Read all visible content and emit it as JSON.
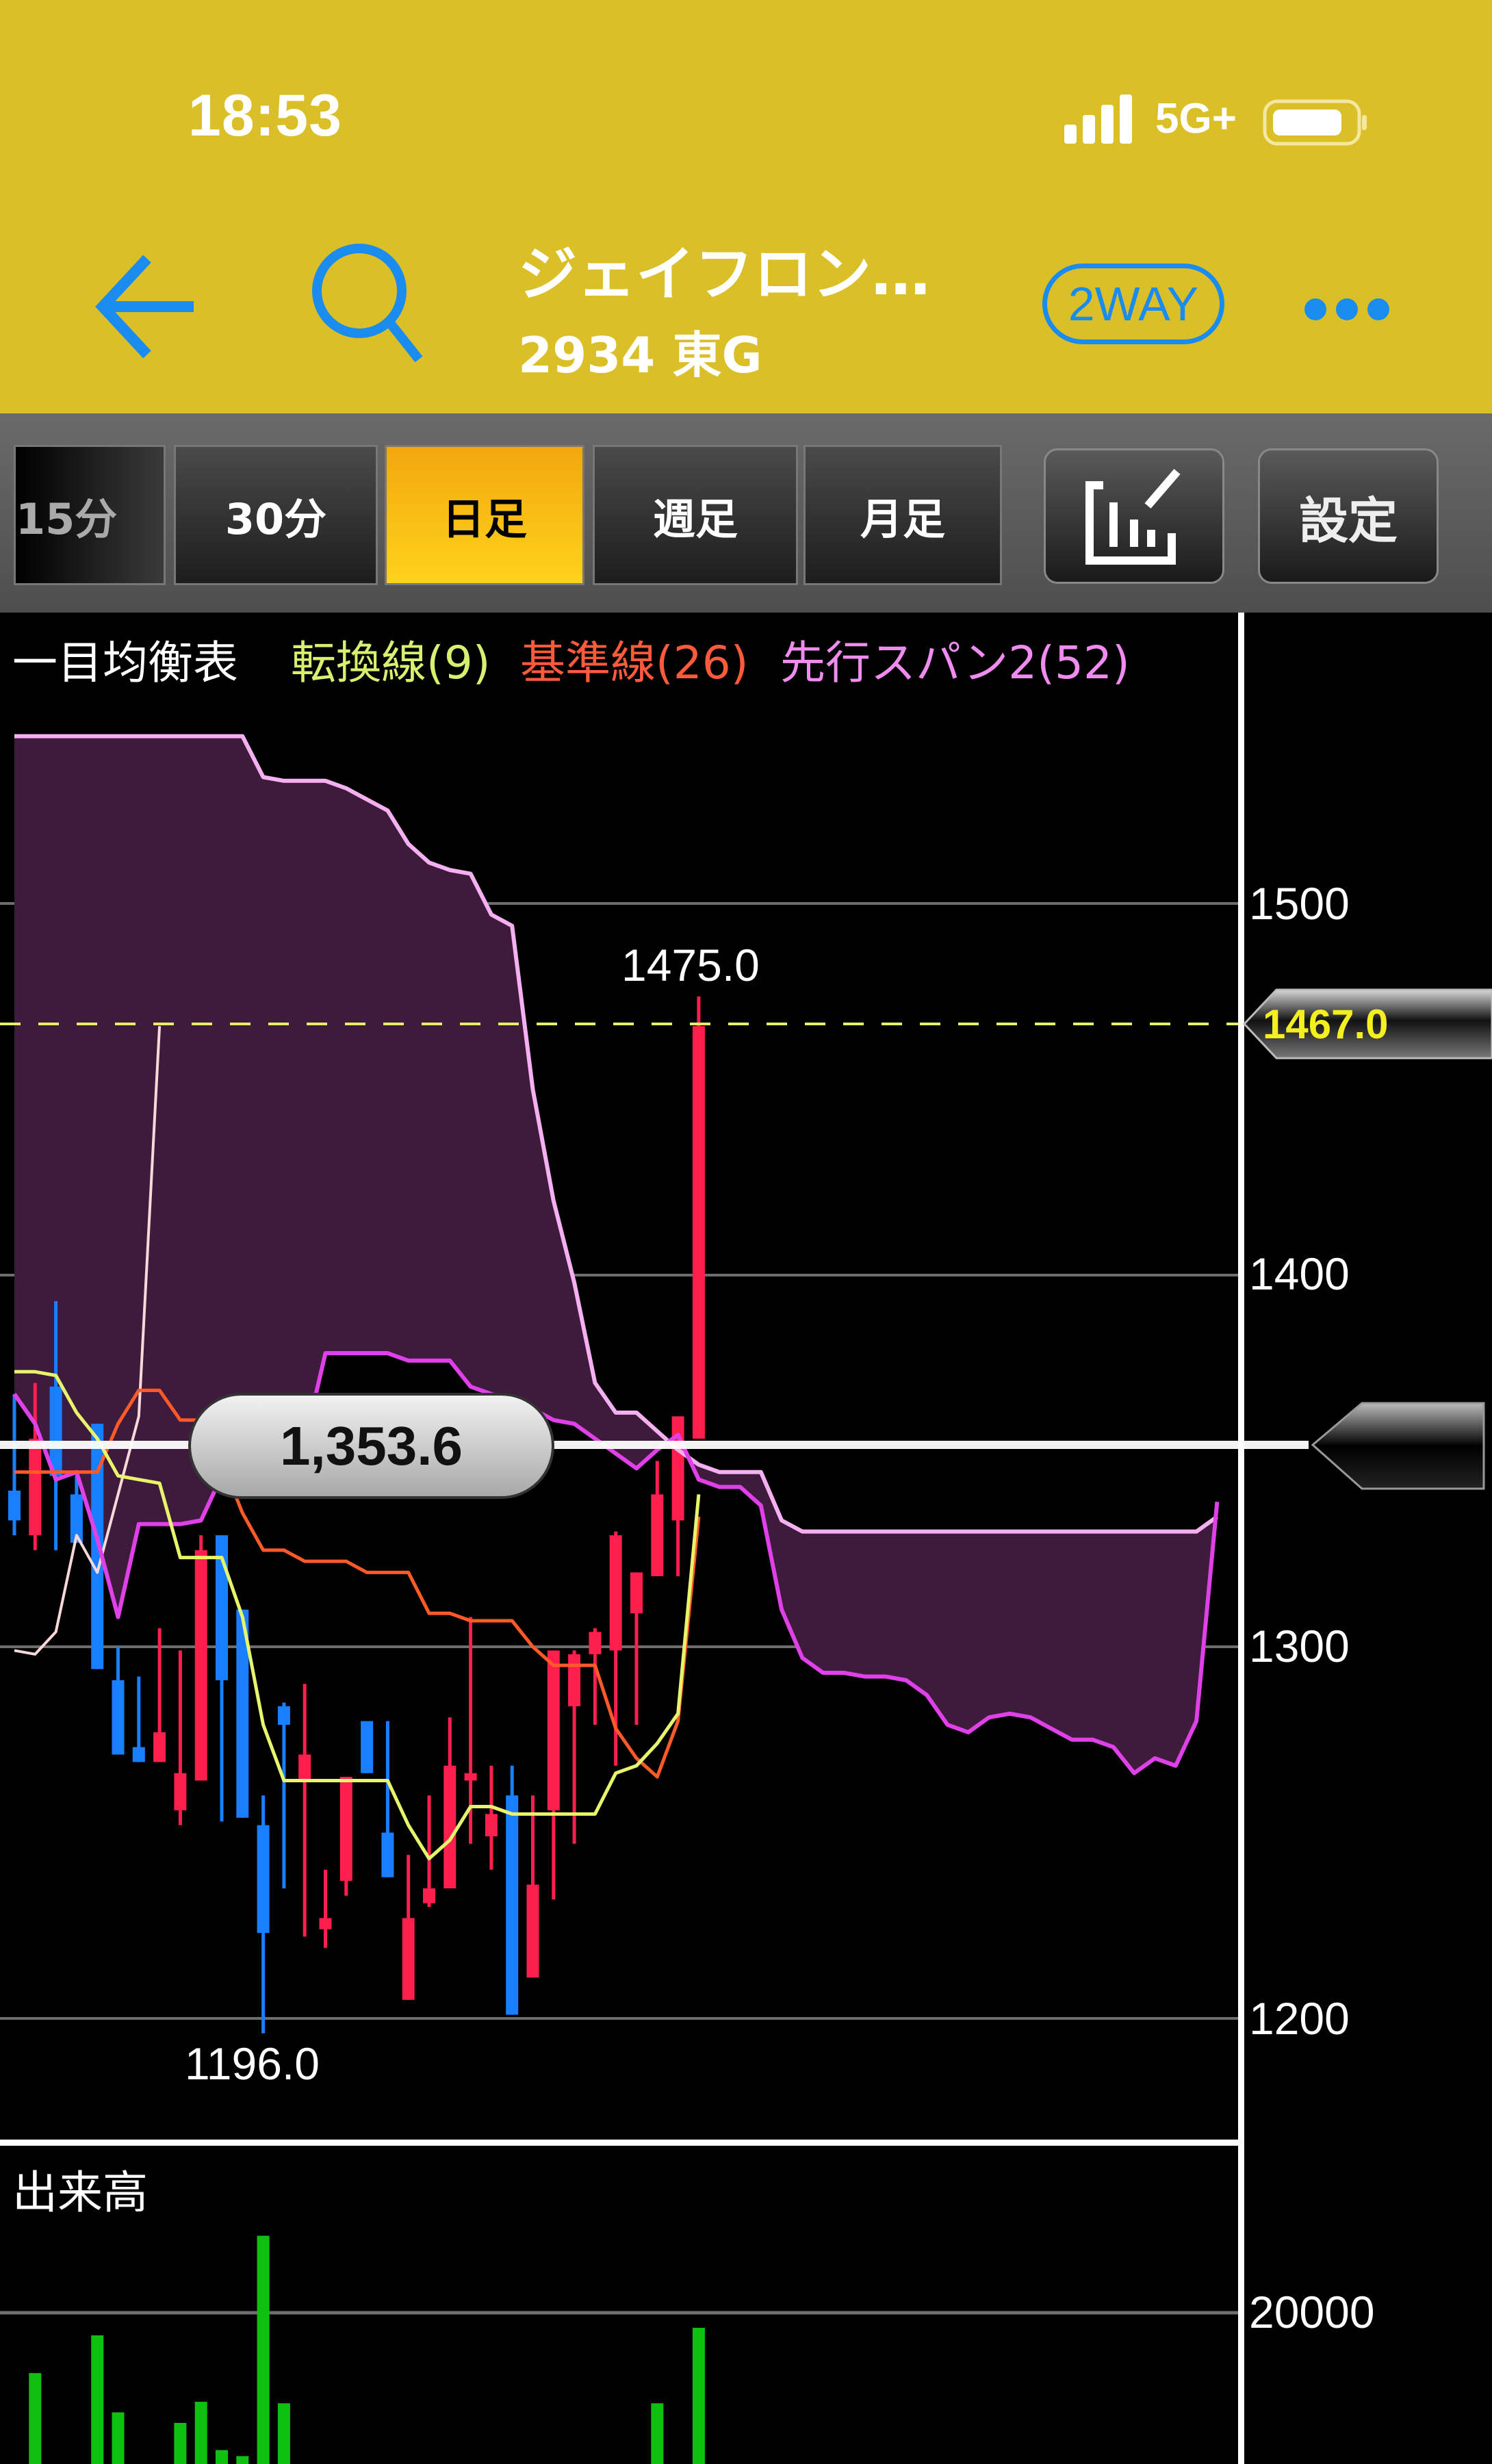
{
  "status_bar": {
    "time": "18:53",
    "network": "5G+",
    "signal_icon": "cellular-signal-icon",
    "battery_icon": "battery-icon"
  },
  "header": {
    "title": "ジェイフロン…",
    "subtitle": "2934 東G",
    "mode_button": "2WAY",
    "back_icon": "arrow-left-icon",
    "search_icon": "search-icon",
    "more_icon": "more-dots-icon",
    "accent_color": "#1a8cf0",
    "bar_color": "#dbbf28"
  },
  "toolbar": {
    "timeframes": [
      {
        "label": "15分",
        "active": false
      },
      {
        "label": "30分",
        "active": false
      },
      {
        "label": "日足",
        "active": true
      },
      {
        "label": "週足",
        "active": false
      },
      {
        "label": "月足",
        "active": false
      }
    ],
    "draw_icon": "chart-edit-icon",
    "settings_label": "設定"
  },
  "legend": {
    "indicator": "一目均衡表",
    "tenkan": "転換線(9)",
    "kijun": "基準線(26)",
    "span2": "先行スパン2(52)"
  },
  "price_axis": {
    "ticks": [
      "1500",
      "1400",
      "1300",
      "1200"
    ]
  },
  "annotations": {
    "high": "1475.0",
    "low": "1196.0",
    "last_price": "1467.0",
    "crosshair_price": "1,353.6"
  },
  "volume_panel": {
    "title": "出来高",
    "ticks": [
      "20000"
    ]
  },
  "chart_data": {
    "type": "candlestick",
    "price_ylim": [
      1200,
      1500
    ],
    "price_ticks": [
      1200,
      1300,
      1400,
      1500
    ],
    "last_price": 1467.0,
    "crosshair_price": 1353.6,
    "high": 1475.0,
    "low": 1196.0,
    "colors": {
      "up": "#ff1f4f",
      "down": "#1a7fff",
      "tenkan": "#e8f56a",
      "kijun": "#ff5a28",
      "span1": "#e040e8",
      "span2": "#f4b0f0",
      "cloud": "#3e1b3c",
      "chikou": "#f8d8d8",
      "volume": "#10c010"
    },
    "candles_ohlc": [
      [
        1342,
        1368,
        1330,
        1334
      ],
      [
        1330,
        1371,
        1326,
        1356
      ],
      [
        1370,
        1393,
        1326,
        1346
      ],
      [
        1341,
        1346,
        1328,
        1328
      ],
      [
        1360,
        1360,
        1294,
        1294
      ],
      [
        1291,
        1300,
        1271,
        1271
      ],
      [
        1273,
        1292,
        1269,
        1269
      ],
      [
        1269,
        1305,
        1269,
        1277
      ],
      [
        1256,
        1299,
        1252,
        1266
      ],
      [
        1264,
        1330,
        1264,
        1326
      ],
      [
        1330,
        1330,
        1253,
        1291
      ],
      [
        1310,
        1310,
        1254,
        1254
      ],
      [
        1252,
        1260,
        1196,
        1223
      ],
      [
        1284,
        1285,
        1235,
        1279
      ],
      [
        1264,
        1290,
        1222,
        1271
      ],
      [
        1224,
        1240,
        1219,
        1227
      ],
      [
        1237,
        1265,
        1233,
        1265
      ],
      [
        1280,
        1280,
        1266,
        1266
      ],
      [
        1250,
        1280,
        1238,
        1238
      ],
      [
        1205,
        1244,
        1205,
        1227
      ],
      [
        1231,
        1260,
        1230,
        1235
      ],
      [
        1235,
        1281,
        1235,
        1268
      ],
      [
        1264,
        1308,
        1247,
        1266
      ],
      [
        1249,
        1268,
        1240,
        1255
      ],
      [
        1260,
        1268,
        1201,
        1201
      ],
      [
        1211,
        1260,
        1211,
        1236
      ],
      [
        1256,
        1299,
        1232,
        1299
      ],
      [
        1284,
        1299,
        1247,
        1298
      ],
      [
        1298,
        1305,
        1279,
        1304
      ],
      [
        1299,
        1331,
        1268,
        1330
      ],
      [
        1309,
        1320,
        1279,
        1320
      ],
      [
        1319,
        1350,
        1319,
        1341
      ],
      [
        1334,
        1362,
        1319,
        1362
      ],
      [
        1356,
        1475,
        1356,
        1467
      ]
    ],
    "series": [
      {
        "name": "転換線(9)",
        "key": "tenkan",
        "values": [
          1374,
          1374,
          1373,
          1363,
          1356,
          1346,
          1345,
          1344,
          1324,
          1324,
          1324,
          1308,
          1279,
          1264,
          1264,
          1264,
          1264,
          1264,
          1264,
          1252,
          1243,
          1248,
          1257,
          1257,
          1255,
          1255,
          1255,
          1255,
          1255,
          1266,
          1268,
          1274,
          1282,
          1341
        ]
      },
      {
        "name": "基準線(26)",
        "key": "kijun",
        "values": [
          1347,
          1347,
          1347,
          1347,
          1347,
          1360,
          1369,
          1369,
          1361,
          1361,
          1350,
          1336,
          1326,
          1326,
          1323,
          1323,
          1323,
          1320,
          1320,
          1320,
          1309,
          1309,
          1307,
          1307,
          1307,
          1300,
          1295,
          1295,
          1295,
          1278,
          1270,
          1265,
          1280,
          1335
        ]
      },
      {
        "key": "span1",
        "values": [
          1368,
          1360,
          1345,
          1347,
          1329,
          1308,
          1333,
          1333,
          1333,
          1334,
          1346,
          1347,
          1347,
          1347,
          1355,
          1379,
          1379,
          1379,
          1379,
          1377,
          1377,
          1377,
          1370,
          1368,
          1366,
          1364,
          1361,
          1360,
          1356,
          1352,
          1348,
          1353,
          1357,
          1345,
          1343,
          1343,
          1338,
          1310,
          1297,
          1293,
          1293,
          1292,
          1292,
          1291,
          1287,
          1279,
          1277,
          1281,
          1282,
          1281,
          1278,
          1275,
          1275,
          1273,
          1266,
          1270,
          1268,
          1280,
          1339
        ]
      },
      {
        "name": "先行スパン2(52)",
        "key": "span2",
        "values": [
          1545,
          1545,
          1545,
          1545,
          1545,
          1545,
          1545,
          1545,
          1545,
          1545,
          1545,
          1545,
          1534,
          1533,
          1533,
          1533,
          1531,
          1528,
          1525,
          1516,
          1511,
          1509,
          1508,
          1497,
          1494,
          1450,
          1420,
          1398,
          1371,
          1363,
          1363,
          1358,
          1353,
          1349,
          1347,
          1347,
          1347,
          1334,
          1331,
          1331,
          1331,
          1331,
          1331,
          1331,
          1331,
          1331,
          1331,
          1331,
          1331,
          1331,
          1331,
          1331,
          1331,
          1331,
          1331,
          1331,
          1331,
          1331,
          1335
        ]
      }
    ],
    "volume": [
      null,
      16000,
      null,
      null,
      18500,
      13400,
      null,
      null,
      12700,
      14100,
      10900,
      10500,
      25100,
      14000,
      null,
      null,
      null,
      null,
      null,
      null,
      null,
      null,
      null,
      null,
      null,
      null,
      null,
      null,
      null,
      null,
      null,
      14000,
      null,
      19000
    ],
    "volume_ticks": [
      20000
    ]
  }
}
